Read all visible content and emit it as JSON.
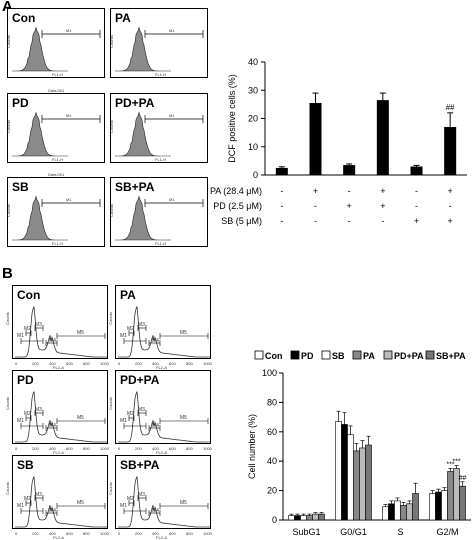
{
  "panel_a": {
    "letter": "A",
    "histograms": [
      {
        "label": "Con",
        "marker": "M1",
        "xaxis": "FL1-H",
        "yaxis": "Counts"
      },
      {
        "label": "PA",
        "marker": "M1",
        "xaxis": "FL1-H",
        "yaxis": "Counts"
      },
      {
        "label": "PD",
        "marker": "M1",
        "xaxis": "FL1-H",
        "yaxis": "Counts",
        "file": "Data.001"
      },
      {
        "label": "PD+PA",
        "marker": "M1",
        "xaxis": "FL1-H",
        "yaxis": "Counts"
      },
      {
        "label": "SB",
        "marker": "M1",
        "xaxis": "FL1-H",
        "yaxis": "Counts",
        "file": "Data.001"
      },
      {
        "label": "SB+PA",
        "marker": "M1",
        "xaxis": "FL1-H",
        "yaxis": "Counts"
      }
    ]
  },
  "panel_b": {
    "letter": "B",
    "histograms": [
      {
        "label": "Con",
        "markers": [
          "M1",
          "M2",
          "M3",
          "M4",
          "M5"
        ],
        "xaxis": "FL2-A",
        "yaxis": "Counts"
      },
      {
        "label": "PA",
        "markers": [
          "M1",
          "M2",
          "M3",
          "M4",
          "M5"
        ],
        "xaxis": "FL2-A",
        "yaxis": "Counts"
      },
      {
        "label": "PD",
        "markers": [
          "M1",
          "M2",
          "M3",
          "M4",
          "M5"
        ],
        "xaxis": "FL2-A",
        "yaxis": "Counts"
      },
      {
        "label": "PD+PA",
        "markers": [
          "M1",
          "M2",
          "M3",
          "M4",
          "M5"
        ],
        "xaxis": "FL2-A",
        "yaxis": "Counts"
      },
      {
        "label": "SB",
        "markers": [
          "M1",
          "M2",
          "M3",
          "M4",
          "M5"
        ],
        "xaxis": "FL2-A",
        "yaxis": "Counts"
      },
      {
        "label": "SB+PA",
        "markers": [
          "M1",
          "M2",
          "M3",
          "M4",
          "M5"
        ],
        "xaxis": "FL2-A",
        "yaxis": "Counts"
      }
    ],
    "xticks": [
      "0",
      "200",
      "400",
      "600",
      "800",
      "1000"
    ],
    "yticks": [
      "0",
      "40",
      "80",
      "120",
      "160",
      "200",
      "240"
    ]
  },
  "chart_data": [
    {
      "type": "bar",
      "ylabel": "DCF positive cells (%)",
      "ylim": [
        0,
        40
      ],
      "yticks": [
        "0",
        "10",
        "20",
        "30",
        "40"
      ],
      "values": [
        2.5,
        25.5,
        3.5,
        26.5,
        3.0,
        17.0
      ],
      "errors": [
        0.4,
        3.5,
        0.4,
        2.5,
        0.4,
        5.0
      ],
      "annotations": [
        "",
        "",
        "",
        "",
        "",
        "##"
      ],
      "bar_color": "#000000",
      "conditions": [
        {
          "label": "PA (28.4 μM)",
          "signs": [
            "-",
            "+",
            "-",
            "+",
            "-",
            "+"
          ]
        },
        {
          "label": "PD (2.5 μM)",
          "signs": [
            "-",
            "-",
            "+",
            "+",
            "-",
            "-"
          ]
        },
        {
          "label": "SB (5 μM)",
          "signs": [
            "-",
            "-",
            "-",
            "-",
            "+",
            "+"
          ]
        }
      ]
    },
    {
      "type": "bar",
      "ylabel": "Cell number (%)",
      "ylim": [
        0,
        100
      ],
      "yticks": [
        "0",
        "20",
        "40",
        "60",
        "80",
        "100"
      ],
      "categories": [
        "SubG1",
        "G0/G1",
        "S",
        "G2/M"
      ],
      "series": [
        {
          "name": "Con",
          "values": [
            3,
            67,
            9,
            18
          ],
          "errors": [
            1,
            7,
            1.5,
            2
          ],
          "color": "#ffffff"
        },
        {
          "name": "PD",
          "values": [
            3,
            65,
            11,
            19
          ],
          "errors": [
            1,
            8,
            2,
            2
          ],
          "color": "#000000"
        },
        {
          "name": "SB",
          "values": [
            3,
            58,
            13,
            20
          ],
          "errors": [
            1,
            6,
            2,
            2
          ],
          "color": "#ffffff"
        },
        {
          "name": "PA",
          "values": [
            3,
            47,
            10,
            33
          ],
          "errors": [
            1,
            5,
            2,
            2
          ],
          "color": "#888888"
        },
        {
          "name": "PD+PA",
          "values": [
            4,
            49,
            11,
            35
          ],
          "errors": [
            1,
            5,
            2,
            2
          ],
          "color": "#bbbbbb"
        },
        {
          "name": "SB+PA",
          "values": [
            4,
            51,
            18,
            23
          ],
          "errors": [
            1,
            6,
            7,
            3
          ],
          "color": "#777777"
        }
      ],
      "annotations": [
        {
          "category": "G2/M",
          "series": "PA",
          "text": "***"
        },
        {
          "category": "G2/M",
          "series": "PD+PA",
          "text": "***"
        },
        {
          "category": "G2/M",
          "series": "SB+PA",
          "text": "##"
        }
      ],
      "legend_position": "top"
    }
  ]
}
